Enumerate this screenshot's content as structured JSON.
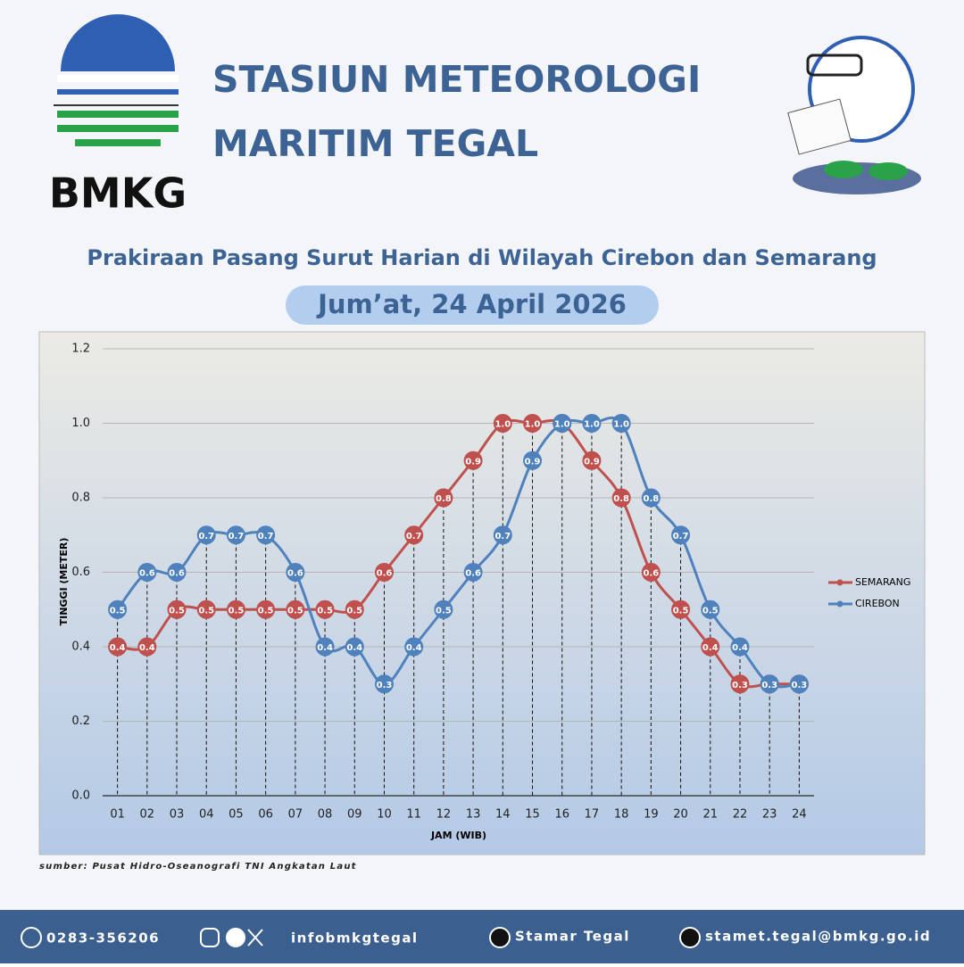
{
  "header": {
    "logo_text": "BMKG",
    "title_lines": [
      "STASIUN METEOROLOGI",
      "MARITIM TEGAL"
    ]
  },
  "chart_data": {
    "type": "line",
    "title": "Prakiraan Pasang Surut Harian di Wilayah Cirebon dan Semarang",
    "subtitle": "Jum’at, 24 April 2026",
    "x_label": "JAM (WIB)",
    "y_label": "TINGGI (METER)",
    "categories": [
      "01",
      "02",
      "03",
      "04",
      "05",
      "06",
      "07",
      "08",
      "09",
      "10",
      "11",
      "12",
      "13",
      "14",
      "15",
      "16",
      "17",
      "18",
      "19",
      "20",
      "21",
      "22",
      "23",
      "24"
    ],
    "series": [
      {
        "name": "SEMARANG",
        "color": "#c0504d",
        "values": [
          0.4,
          0.4,
          0.5,
          0.5,
          0.5,
          0.5,
          0.5,
          0.5,
          0.5,
          0.6,
          0.7,
          0.8,
          0.9,
          1,
          1,
          1,
          0.9,
          0.8,
          0.6,
          0.5,
          0.4,
          0.3,
          0.3,
          0.3
        ],
        "value_labels": [
          "0.4",
          "0.4",
          "0.5",
          "0.5",
          "0.5",
          "0.5",
          "0.5",
          "0.5",
          "0.5",
          "0.6",
          "0.7",
          "0.8",
          "0.9",
          "1.0",
          "1.0",
          "1.0",
          "0.9",
          "0.8",
          "0.6",
          "0.5",
          "0.4",
          "0.3",
          "0.3",
          "0.3"
        ]
      },
      {
        "name": "CIREBON",
        "color": "#4f81bd",
        "values": [
          0.5,
          0.6,
          0.6,
          0.7,
          0.7,
          0.7,
          0.6,
          0.4,
          0.4,
          0.3,
          0.4,
          0.5,
          0.6,
          0.7,
          0.9,
          1,
          1,
          1,
          0.8,
          0.7,
          0.5,
          0.4,
          0.3,
          0.3
        ],
        "value_labels": [
          "0.5",
          "0.6",
          "0.6",
          "0.7",
          "0.7",
          "0.7",
          "0.6",
          "0.4",
          "0.4",
          "0.3",
          "0.4",
          "0.5",
          "0.6",
          "0.7",
          "0.9",
          "1.0",
          "1.0",
          "1.0",
          "0.8",
          "0.7",
          "0.5",
          "0.4",
          "0.3",
          "0.3"
        ]
      }
    ],
    "ylim": [
      0,
      1.2
    ],
    "yticks": [
      {
        "value": 0,
        "label": "0.0"
      },
      0.2,
      0.4,
      0.6,
      0.8,
      {
        "value": 1,
        "label": "1.0"
      },
      1.2
    ],
    "grid": true,
    "legend": "right"
  },
  "source": "sumber: Pusat Hidro-Oseanografi TNI Angkatan Laut",
  "footer": {
    "phone": "0283-356206",
    "social": "infobmkgtegal",
    "youtube": "Stamar Tegal",
    "email": "stamet.tegal@bmkg.go.id"
  }
}
